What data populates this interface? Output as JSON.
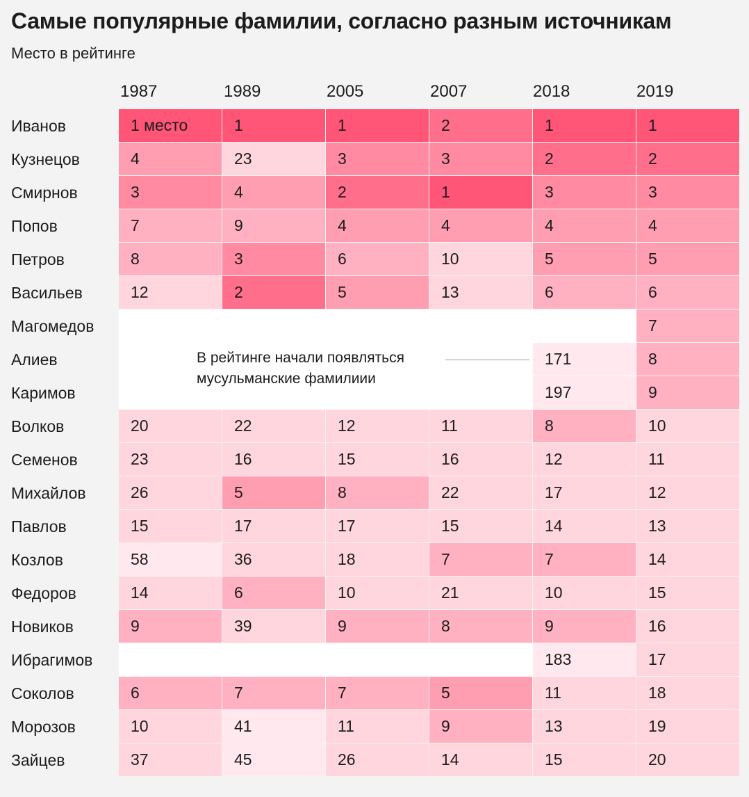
{
  "title": "Самые популярные фамилии, согласно разным источникам",
  "subtitle": "Место в рейтинге",
  "annotation": {
    "line1": "В рейтинге начали появляться",
    "line2": "мусульманские фамилиии"
  },
  "first_cell_suffix": " место",
  "colors": {
    "rank1": "#ff5577",
    "rank2": "#ff6f8b",
    "rank3": "#ff8aa2",
    "rank4_5": "#ff9db1",
    "rank6_9": "#ffb1c2",
    "rank10_39": "#ffd5de",
    "rank40_plus": "#ffe9ee",
    "empty_region": "#ffffff",
    "background": "#f3f3f3"
  },
  "chart_data": {
    "type": "table",
    "title": "Самые популярные фамилии, согласно разным источникам",
    "subtitle": "Место в рейтинге",
    "columns": [
      "1987",
      "1989",
      "2005",
      "2007",
      "2018",
      "2019"
    ],
    "rows": [
      {
        "name": "Иванов",
        "values": [
          1,
          1,
          1,
          2,
          1,
          1
        ]
      },
      {
        "name": "Кузнецов",
        "values": [
          4,
          23,
          3,
          3,
          2,
          2
        ]
      },
      {
        "name": "Смирнов",
        "values": [
          3,
          4,
          2,
          1,
          3,
          3
        ]
      },
      {
        "name": "Попов",
        "values": [
          7,
          9,
          4,
          4,
          4,
          4
        ]
      },
      {
        "name": "Петров",
        "values": [
          8,
          3,
          6,
          10,
          5,
          5
        ]
      },
      {
        "name": "Васильев",
        "values": [
          12,
          2,
          5,
          13,
          6,
          6
        ]
      },
      {
        "name": "Магомедов",
        "values": [
          null,
          null,
          null,
          null,
          null,
          7
        ]
      },
      {
        "name": "Алиев",
        "values": [
          null,
          null,
          null,
          null,
          171,
          8
        ]
      },
      {
        "name": "Каримов",
        "values": [
          null,
          null,
          null,
          null,
          197,
          9
        ]
      },
      {
        "name": "Волков",
        "values": [
          20,
          22,
          12,
          11,
          8,
          10
        ]
      },
      {
        "name": "Семенов",
        "values": [
          23,
          16,
          15,
          16,
          12,
          11
        ]
      },
      {
        "name": "Михайлов",
        "values": [
          26,
          5,
          8,
          22,
          17,
          12
        ]
      },
      {
        "name": "Павлов",
        "values": [
          15,
          17,
          17,
          15,
          14,
          13
        ]
      },
      {
        "name": "Козлов",
        "values": [
          58,
          36,
          18,
          7,
          7,
          14
        ]
      },
      {
        "name": "Федоров",
        "values": [
          14,
          6,
          10,
          21,
          10,
          15
        ]
      },
      {
        "name": "Новиков",
        "values": [
          9,
          39,
          9,
          8,
          9,
          16
        ]
      },
      {
        "name": "Ибрагимов",
        "values": [
          null,
          null,
          null,
          null,
          183,
          17
        ]
      },
      {
        "name": "Соколов",
        "values": [
          6,
          7,
          7,
          5,
          11,
          18
        ]
      },
      {
        "name": "Морозов",
        "values": [
          10,
          41,
          11,
          9,
          13,
          19
        ]
      },
      {
        "name": "Зайцев",
        "values": [
          37,
          45,
          26,
          14,
          15,
          20
        ]
      }
    ]
  }
}
